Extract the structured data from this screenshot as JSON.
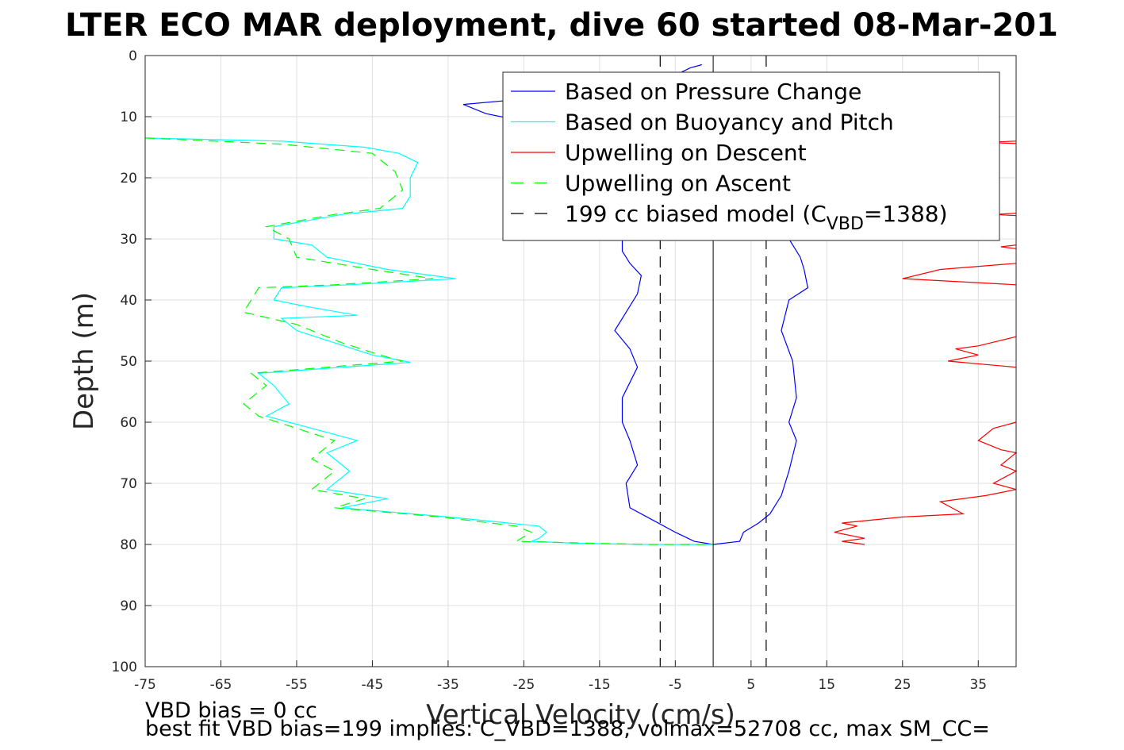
{
  "chart_data": {
    "type": "line",
    "title": "LTER ECO MAR deployment, dive 60 started 08-Mar-201",
    "xlabel": "Vertical Velocity (cm/s)",
    "ylabel": "Depth (m)",
    "xlim": [
      -75,
      40
    ],
    "ylim": [
      0,
      100
    ],
    "y_reversed": true,
    "grid": true,
    "x_ticks": [
      -75,
      -65,
      -55,
      -45,
      -35,
      -25,
      -15,
      -5,
      5,
      15,
      25,
      35
    ],
    "y_ticks": [
      0,
      10,
      20,
      30,
      40,
      50,
      60,
      70,
      80,
      90,
      100
    ],
    "legend": {
      "position": "top-right",
      "entries": [
        {
          "label": "Based on Pressure Change",
          "color": "#0000ff",
          "style": "solid"
        },
        {
          "label": "Based on Buoyancy and Pitch",
          "color": "#00ffff",
          "style": "solid"
        },
        {
          "label": "Upwelling on Descent",
          "color": "#ff0000",
          "style": "solid"
        },
        {
          "label": "Upwelling on Ascent",
          "color": "#00ff00",
          "style": "dashed"
        },
        {
          "label_prefix": "199 cc biased model (C",
          "label_sub": "VBD",
          "label_suffix": "=1388)",
          "color": "#000000",
          "style": "dashed"
        }
      ]
    },
    "series": [
      {
        "name": "Based on Pressure Change",
        "color": "#0000ff",
        "style": "solid",
        "points": [
          [
            -1.5,
            1.5
          ],
          [
            -3,
            2
          ],
          [
            -8,
            5
          ],
          [
            -15,
            6
          ],
          [
            -33,
            8
          ],
          [
            -30,
            9.5
          ],
          [
            -26,
            10.5
          ],
          [
            -20,
            11
          ],
          [
            -14,
            12
          ],
          [
            -12,
            20
          ],
          [
            -12,
            26
          ],
          [
            -12,
            32
          ],
          [
            -11,
            34
          ],
          [
            -9.5,
            36
          ],
          [
            -10,
            39
          ],
          [
            -11.5,
            42
          ],
          [
            -13,
            45
          ],
          [
            -11,
            48
          ],
          [
            -10,
            51
          ],
          [
            -12,
            56
          ],
          [
            -12,
            60
          ],
          [
            -11,
            63
          ],
          [
            -10,
            67
          ],
          [
            -11.5,
            70
          ],
          [
            -11,
            74
          ],
          [
            -8,
            76
          ],
          [
            -5,
            78
          ],
          [
            -2.5,
            79.5
          ],
          [
            0,
            80
          ]
        ]
      },
      {
        "name": "Based on Pressure Change",
        "color": "#0000ff",
        "style": "solid",
        "points": [
          [
            0,
            80
          ],
          [
            3.5,
            79.5
          ],
          [
            4,
            78
          ],
          [
            6,
            76.5
          ],
          [
            7.5,
            75
          ],
          [
            9,
            72
          ],
          [
            10,
            68
          ],
          [
            11,
            63
          ],
          [
            10,
            60
          ],
          [
            11,
            56
          ],
          [
            10.5,
            50
          ],
          [
            9,
            45
          ],
          [
            10,
            40
          ],
          [
            12.5,
            38
          ],
          [
            12,
            35
          ],
          [
            11.5,
            33
          ],
          [
            10,
            30
          ]
        ]
      },
      {
        "name": "Based on Buoyancy and Pitch",
        "color": "#00ffff",
        "style": "solid",
        "points": [
          [
            -75,
            13.5
          ],
          [
            -57,
            14
          ],
          [
            -46,
            15
          ],
          [
            -41.5,
            16
          ],
          [
            -39,
            17.5
          ],
          [
            -40,
            20
          ],
          [
            -40,
            23
          ],
          [
            -41,
            25
          ],
          [
            -49,
            26
          ],
          [
            -58,
            28
          ],
          [
            -58,
            30
          ],
          [
            -53,
            31
          ],
          [
            -51,
            33
          ],
          [
            -43,
            35
          ],
          [
            -34,
            36.5
          ],
          [
            -48,
            37.5
          ],
          [
            -57,
            38
          ],
          [
            -58,
            40
          ],
          [
            -54,
            41
          ],
          [
            -47,
            42.5
          ],
          [
            -57,
            43
          ],
          [
            -55,
            45
          ],
          [
            -50,
            47
          ],
          [
            -45,
            49
          ],
          [
            -40,
            50.2
          ],
          [
            -60,
            52
          ],
          [
            -58,
            54
          ],
          [
            -56,
            57
          ],
          [
            -59,
            59
          ],
          [
            -53,
            61
          ],
          [
            -47,
            63
          ],
          [
            -51,
            65
          ],
          [
            -48,
            68
          ],
          [
            -51,
            71
          ],
          [
            -43,
            72.5
          ],
          [
            -49,
            74
          ],
          [
            -35,
            75.5
          ],
          [
            -23,
            77
          ],
          [
            -22,
            78
          ],
          [
            -23,
            79
          ],
          [
            -24,
            79.5
          ],
          [
            -18,
            79.8
          ],
          [
            -8,
            80
          ],
          [
            0,
            80
          ]
        ]
      },
      {
        "name": "Upwelling on Descent",
        "color": "#ff0000",
        "style": "solid",
        "points": [
          [
            40,
            14
          ],
          [
            36,
            14.2
          ],
          [
            40,
            14.4
          ]
        ]
      },
      {
        "name": "Upwelling on Descent",
        "color": "#ff0000",
        "style": "solid",
        "points": [
          [
            40,
            25.8
          ],
          [
            37,
            26
          ],
          [
            40,
            26.2
          ]
        ]
      },
      {
        "name": "Upwelling on Descent",
        "color": "#ff0000",
        "style": "solid",
        "points": [
          [
            40,
            31
          ],
          [
            38,
            31.3
          ],
          [
            40,
            31.6
          ]
        ]
      },
      {
        "name": "Upwelling on Descent",
        "color": "#ff0000",
        "style": "solid",
        "points": [
          [
            40,
            34
          ],
          [
            30,
            35
          ],
          [
            25,
            36.5
          ],
          [
            40,
            37.5
          ]
        ]
      },
      {
        "name": "Upwelling on Descent",
        "color": "#ff0000",
        "style": "solid",
        "points": [
          [
            40,
            46
          ],
          [
            35,
            47.5
          ],
          [
            32,
            48
          ],
          [
            35,
            49
          ],
          [
            31,
            50
          ],
          [
            40,
            51
          ]
        ]
      },
      {
        "name": "Upwelling on Descent",
        "color": "#ff0000",
        "style": "solid",
        "points": [
          [
            40,
            60
          ],
          [
            37,
            61
          ],
          [
            35,
            63
          ],
          [
            38,
            64.5
          ],
          [
            40,
            65
          ],
          [
            38,
            67
          ],
          [
            40,
            68
          ],
          [
            37,
            70
          ],
          [
            40,
            71
          ],
          [
            36,
            72
          ],
          [
            30,
            73
          ],
          [
            33,
            75
          ],
          [
            25,
            75.5
          ],
          [
            17,
            76.5
          ],
          [
            19,
            77
          ],
          [
            16,
            78
          ],
          [
            20,
            79
          ],
          [
            17,
            79.5
          ],
          [
            20,
            80
          ]
        ]
      },
      {
        "name": "Upwelling on Ascent",
        "color": "#00ff00",
        "style": "dashed",
        "points": [
          [
            -75,
            13.5
          ],
          [
            -57,
            14.5
          ],
          [
            -45,
            16
          ],
          [
            -42,
            19
          ],
          [
            -41,
            22
          ],
          [
            -44,
            25
          ],
          [
            -50,
            26
          ],
          [
            -59,
            28
          ],
          [
            -56,
            30
          ],
          [
            -55,
            33
          ],
          [
            -45,
            35
          ],
          [
            -37,
            36.5
          ],
          [
            -50,
            37.5
          ],
          [
            -60,
            38
          ],
          [
            -62,
            42
          ],
          [
            -55,
            44
          ],
          [
            -49,
            47
          ],
          [
            -44,
            49
          ],
          [
            -41,
            50
          ],
          [
            -61,
            52
          ],
          [
            -59,
            54
          ],
          [
            -62,
            57
          ],
          [
            -60,
            59
          ],
          [
            -55,
            61
          ],
          [
            -50,
            63
          ],
          [
            -53,
            66
          ],
          [
            -50,
            68
          ],
          [
            -53,
            71
          ],
          [
            -46,
            72.5
          ],
          [
            -50,
            74
          ],
          [
            -36,
            75.5
          ],
          [
            -26,
            77
          ],
          [
            -24,
            78
          ],
          [
            -26,
            79.5
          ],
          [
            -16,
            79.8
          ],
          [
            -8,
            80
          ],
          [
            0,
            80
          ]
        ]
      },
      {
        "name": "199 cc biased model",
        "color": "#000000",
        "style": "dashed",
        "points": [
          [
            -7,
            0
          ],
          [
            -7,
            100
          ]
        ]
      },
      {
        "name": "199 cc biased model",
        "color": "#000000",
        "style": "dashed",
        "points": [
          [
            7,
            0
          ],
          [
            7,
            100
          ]
        ]
      }
    ],
    "zero_line": {
      "x": 0,
      "color": "#000000"
    },
    "annotations": [
      "VBD bias = 0 cc",
      "best fit VBD bias=199 implies: C_VBD=1388, volmax=52708 cc, max SM_CC="
    ]
  }
}
